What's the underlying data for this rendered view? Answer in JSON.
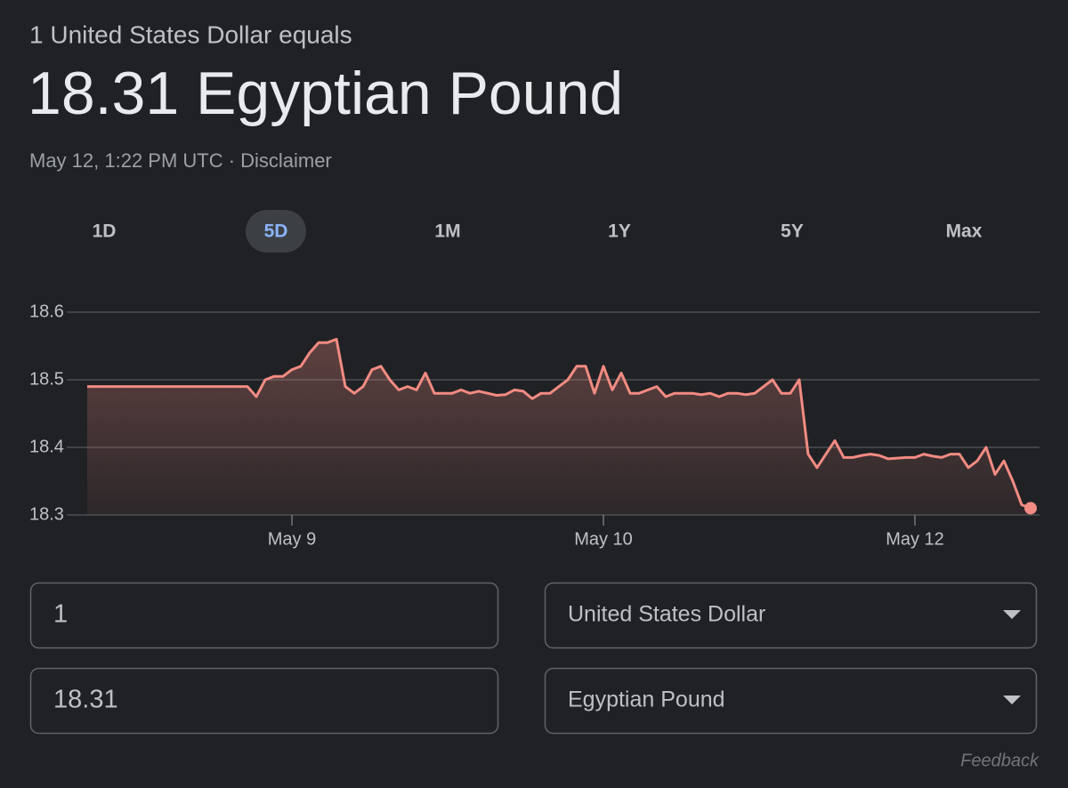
{
  "header": {
    "subtitle": "1 United States Dollar equals",
    "title": "18.31 Egyptian Pound",
    "timestamp": "May 12, 1:22 PM UTC ·",
    "disclaimer": "Disclaimer"
  },
  "tabs": {
    "items": [
      "1D",
      "5D",
      "1M",
      "1Y",
      "5Y",
      "Max"
    ],
    "selected": "5D"
  },
  "chart_data": {
    "type": "line",
    "color": "#f28b82",
    "grid": true,
    "ylim": [
      18.3,
      18.6
    ],
    "yticks": [
      18.6,
      18.5,
      18.4,
      18.3
    ],
    "categories": [
      null,
      null,
      null,
      null,
      null,
      null,
      null,
      null,
      null,
      null,
      null,
      null,
      null,
      null,
      null,
      null,
      null,
      null,
      null,
      null,
      null,
      null,
      null,
      "May 9",
      null,
      null,
      null,
      null,
      null,
      null,
      null,
      null,
      null,
      null,
      null,
      null,
      null,
      null,
      null,
      null,
      null,
      null,
      null,
      null,
      null,
      null,
      null,
      null,
      null,
      null,
      null,
      null,
      null,
      null,
      null,
      null,
      null,
      null,
      "May 10",
      null,
      null,
      null,
      null,
      null,
      null,
      null,
      null,
      null,
      null,
      null,
      null,
      null,
      null,
      null,
      null,
      null,
      null,
      null,
      null,
      null,
      null,
      null,
      null,
      null,
      null,
      null,
      null,
      null,
      null,
      null,
      null,
      null,
      null,
      "May 12",
      null,
      null,
      null,
      null,
      null,
      null,
      null,
      null,
      null,
      null,
      null,
      null,
      null
    ],
    "values": [
      18.49,
      18.49,
      18.49,
      18.49,
      18.49,
      18.49,
      18.49,
      18.49,
      18.49,
      18.49,
      18.49,
      18.49,
      18.49,
      18.49,
      18.49,
      18.49,
      18.49,
      18.49,
      18.49,
      18.475,
      18.5,
      18.505,
      18.505,
      18.515,
      18.52,
      18.54,
      18.555,
      18.555,
      18.56,
      18.49,
      18.48,
      18.49,
      18.515,
      18.52,
      18.5,
      18.485,
      18.49,
      18.485,
      18.51,
      18.48,
      18.48,
      18.48,
      18.485,
      18.48,
      18.483,
      18.48,
      18.477,
      18.478,
      18.485,
      18.483,
      18.472,
      18.48,
      18.48,
      18.49,
      18.5,
      18.52,
      18.52,
      18.48,
      18.52,
      18.485,
      18.51,
      18.48,
      18.48,
      18.485,
      18.49,
      18.475,
      18.48,
      18.48,
      18.48,
      18.478,
      18.48,
      18.475,
      18.48,
      18.48,
      18.478,
      18.48,
      18.49,
      18.5,
      18.48,
      18.48,
      18.5,
      18.39,
      18.37,
      18.39,
      18.41,
      18.385,
      18.385,
      18.388,
      18.39,
      18.388,
      18.383,
      18.384,
      18.385,
      18.385,
      18.39,
      18.387,
      18.385,
      18.39,
      18.39,
      18.37,
      18.38,
      18.4,
      18.36,
      18.38,
      18.35,
      18.315,
      18.31
    ]
  },
  "converter": {
    "rows": [
      {
        "amount": "1",
        "currency": "United States Dollar"
      },
      {
        "amount": "18.31",
        "currency": "Egyptian Pound"
      }
    ]
  },
  "footer": {
    "feedback": "Feedback"
  }
}
